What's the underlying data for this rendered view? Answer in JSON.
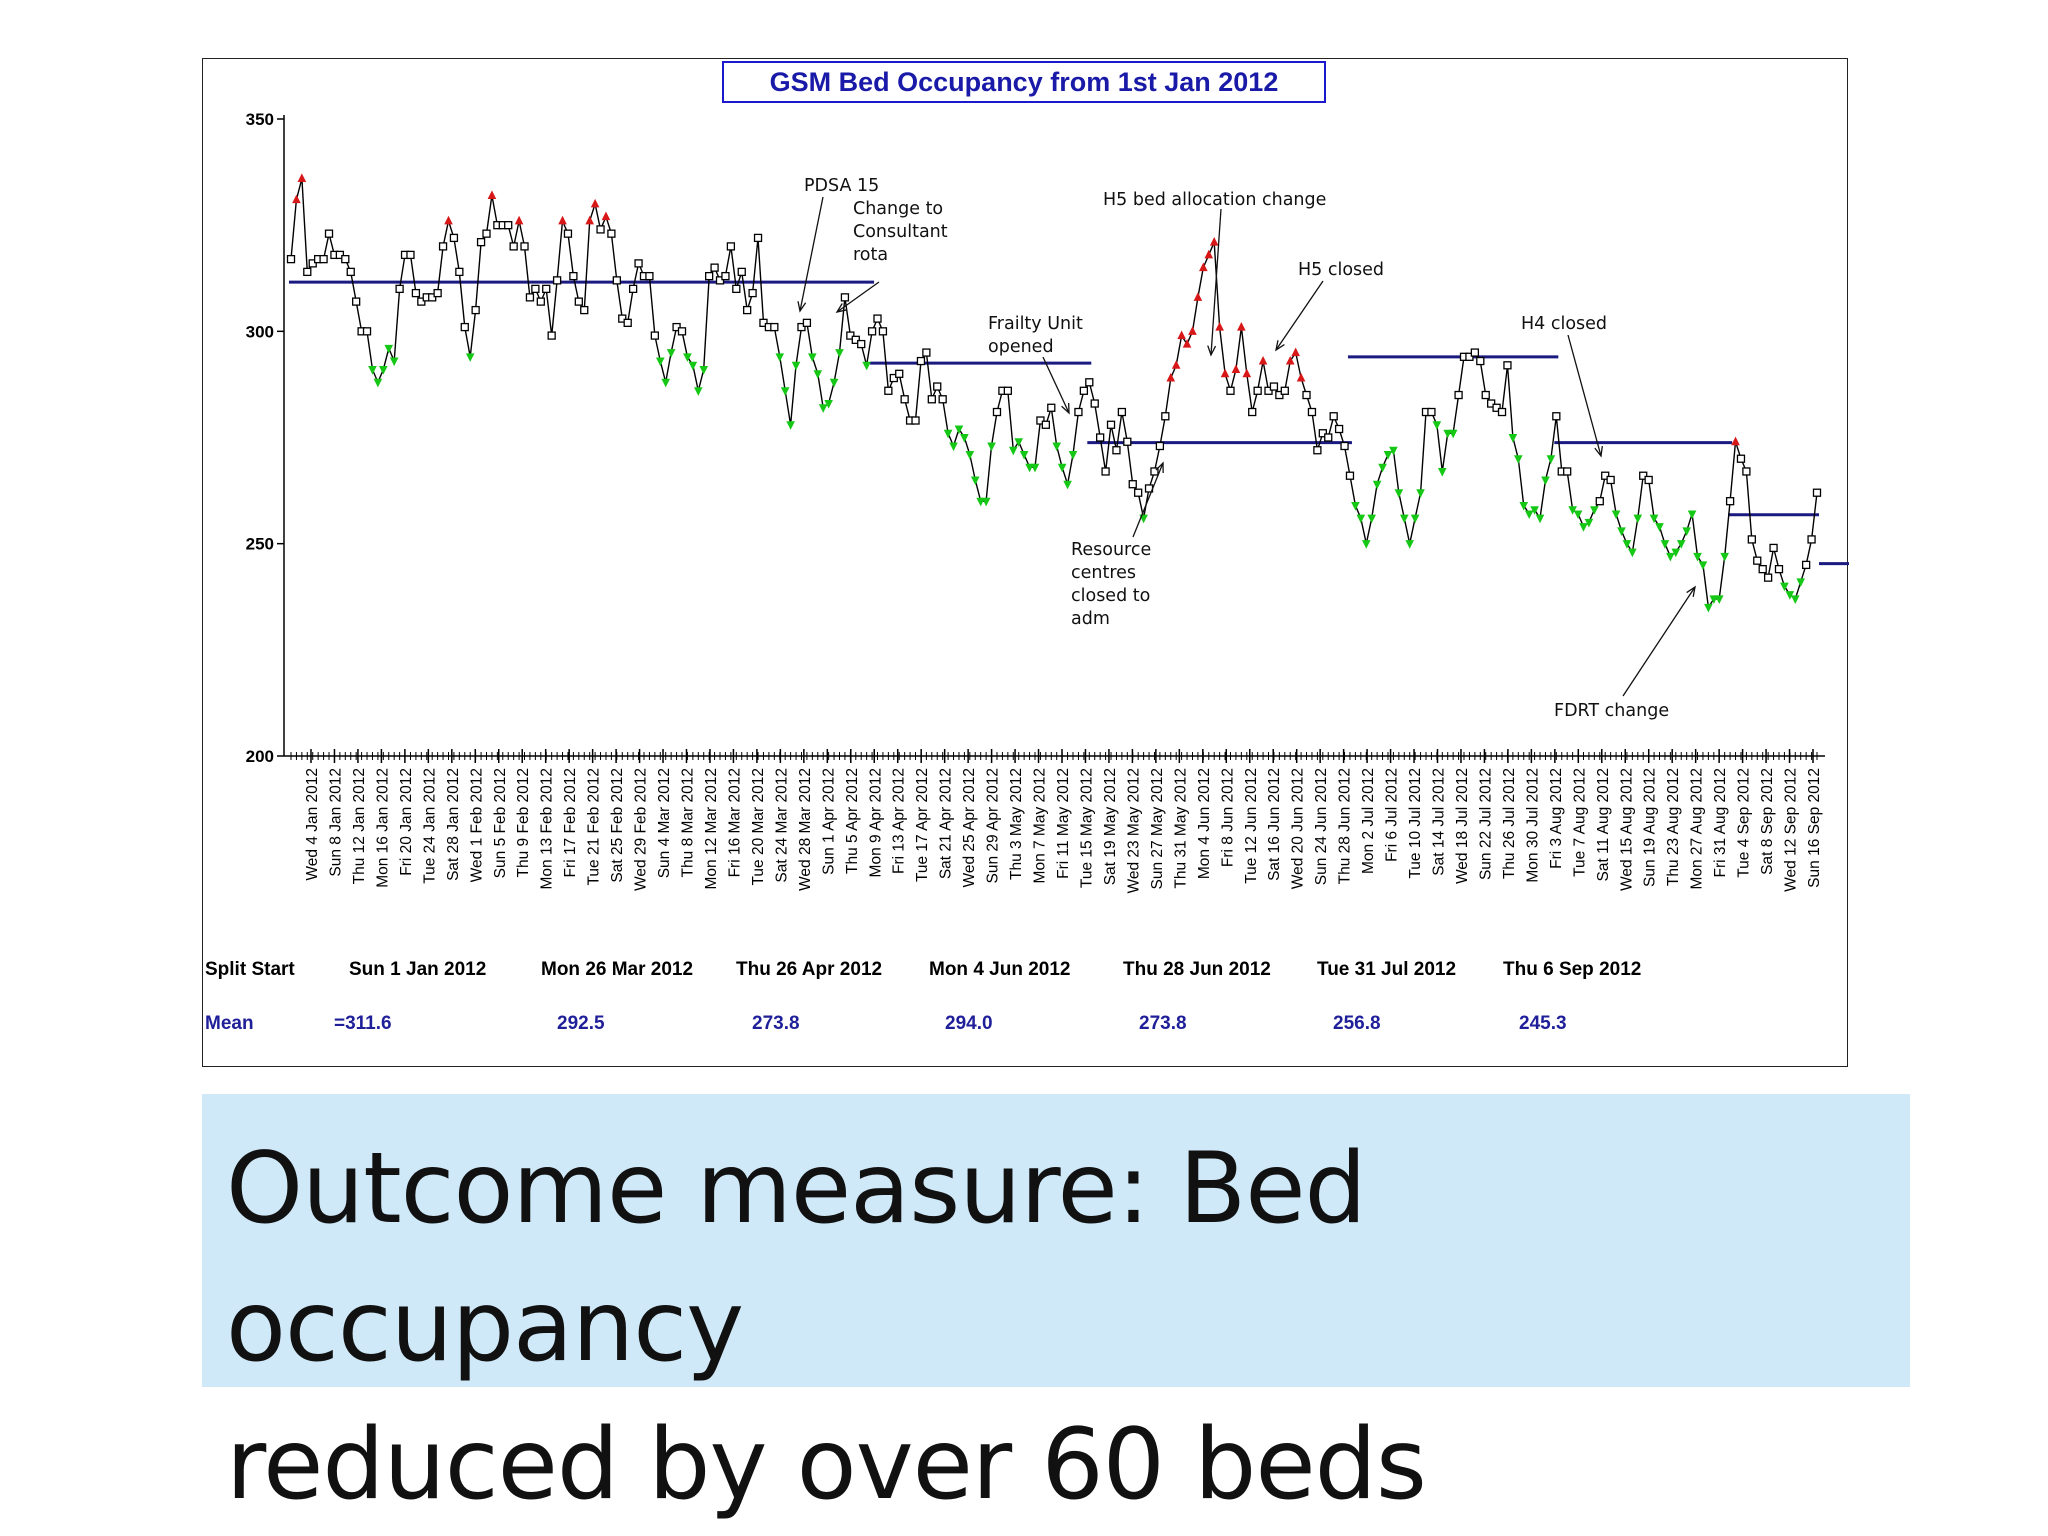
{
  "chart_data": {
    "type": "line",
    "title": "GSM Bed Occupancy from 1st Jan 2012",
    "ylim": [
      200,
      350
    ],
    "yticks": [
      200,
      250,
      300,
      350
    ],
    "grid": false,
    "x_labels": [
      "Wed  4 Jan 2012",
      "Sun  8 Jan 2012",
      "Thu 12 Jan 2012",
      "Mon 16 Jan 2012",
      "Fri 20 Jan 2012",
      "Tue 24 Jan 2012",
      "Sat 28 Jan 2012",
      "Wed  1 Feb 2012",
      "Sun  5 Feb 2012",
      "Thu  9 Feb 2012",
      "Mon 13 Feb 2012",
      "Fri 17 Feb 2012",
      "Tue 21 Feb 2012",
      "Sat 25 Feb 2012",
      "Wed 29 Feb 2012",
      "Sun  4 Mar 2012",
      "Thu  8 Mar 2012",
      "Mon 12 Mar 2012",
      "Fri 16 Mar 2012",
      "Tue 20 Mar 2012",
      "Sat 24 Mar 2012",
      "Wed 28 Mar 2012",
      "Sun  1 Apr 2012",
      "Thu  5 Apr 2012",
      "Mon  9 Apr 2012",
      "Fri 13 Apr 2012",
      "Tue 17 Apr 2012",
      "Sat 21 Apr 2012",
      "Wed 25 Apr 2012",
      "Sun 29 Apr 2012",
      "Thu  3 May 2012",
      "Mon  7 May 2012",
      "Fri 11 May 2012",
      "Tue 15 May 2012",
      "Sat 19 May 2012",
      "Wed 23 May 2012",
      "Sun 27 May 2012",
      "Thu 31 May 2012",
      "Mon  4 Jun 2012",
      "Fri  8 Jun 2012",
      "Tue 12 Jun 2012",
      "Sat 16 Jun 2012",
      "Wed 20 Jun 2012",
      "Sun 24 Jun 2012",
      "Thu 28 Jun 2012",
      "Mon  2 Jul 2012",
      "Fri  6 Jul 2012",
      "Tue 10 Jul 2012",
      "Sat 14 Jul 2012",
      "Wed 18 Jul 2012",
      "Sun 22 Jul 2012",
      "Thu 26 Jul 2012",
      "Mon 30 Jul 2012",
      "Fri  3 Aug 2012",
      "Tue  7 Aug 2012",
      "Sat 11 Aug 2012",
      "Wed 15 Aug 2012",
      "Sun 19 Aug 2012",
      "Thu 23 Aug 2012",
      "Mon 27 Aug 2012",
      "Fri 31 Aug 2012",
      "Tue  4 Sep 2012",
      "Sat  8 Sep 2012",
      "Wed 12 Sep 2012",
      "Sun 16 Sep 2012"
    ],
    "series": [
      {
        "values": [
          317,
          331,
          336,
          314,
          316,
          317,
          317,
          323,
          318,
          318,
          317,
          314,
          307,
          300,
          300,
          291,
          288,
          291,
          296,
          293,
          310,
          318,
          318,
          309,
          307,
          308,
          308,
          309,
          320,
          326,
          322,
          314,
          301,
          294,
          305,
          321,
          323,
          332,
          325,
          325,
          325,
          320,
          326,
          320,
          308,
          310,
          307,
          310,
          299,
          312,
          326,
          323,
          313,
          307,
          305,
          326,
          330,
          324,
          327,
          323,
          312,
          303,
          302,
          310,
          316,
          313,
          313,
          299,
          293,
          288,
          295,
          301,
          300,
          294,
          292,
          286,
          291,
          313,
          315,
          312,
          313,
          320,
          310,
          314,
          305,
          309,
          322,
          302,
          301,
          301,
          294,
          286,
          278,
          292,
          301,
          302,
          294,
          290,
          282,
          283,
          288,
          295,
          308,
          299,
          298,
          297,
          292,
          300,
          303,
          300,
          286,
          289,
          290,
          284,
          279,
          279,
          293,
          295,
          284,
          287,
          284,
          276,
          273,
          277,
          275,
          271,
          265,
          260,
          260,
          273,
          281,
          286,
          286,
          272,
          274,
          271,
          268,
          268,
          279,
          278,
          282,
          273,
          268,
          264,
          271,
          281,
          286,
          288,
          283,
          275,
          267,
          278,
          272,
          281,
          274,
          264,
          262,
          256,
          263,
          267,
          273,
          280,
          289,
          292,
          299,
          297,
          300,
          308,
          315,
          318,
          321,
          301,
          290,
          286,
          291,
          301,
          290,
          281,
          286,
          293,
          286,
          287,
          285,
          286,
          293,
          295,
          289,
          285,
          281,
          272,
          276,
          275,
          280,
          277,
          273,
          266,
          259,
          256,
          250,
          256,
          264,
          268,
          271,
          272,
          262,
          256,
          250,
          256,
          262,
          281,
          281,
          278,
          267,
          276,
          276,
          285,
          294,
          294,
          295,
          293,
          285,
          283,
          282,
          281,
          292,
          275,
          270,
          259,
          257,
          258,
          256,
          265,
          270,
          280,
          267,
          267,
          258,
          257,
          254,
          255,
          258,
          260,
          266,
          265,
          257,
          253,
          250,
          248,
          256,
          266,
          265,
          256,
          254,
          250,
          247,
          248,
          250,
          253,
          257,
          247,
          245,
          235,
          237,
          237,
          247,
          260,
          274,
          270,
          267,
          251,
          246,
          244,
          242,
          249,
          244,
          240,
          238,
          237,
          241,
          245,
          251,
          262
        ]
      }
    ],
    "mean_segments": [
      {
        "from": 0,
        "to": 107,
        "value": 311.6
      },
      {
        "from": 107,
        "to": 147,
        "value": 292.5
      },
      {
        "from": 147,
        "to": 195,
        "value": 273.8
      },
      {
        "from": 195,
        "to": 233,
        "value": 294.0
      },
      {
        "from": 233,
        "to": 265,
        "value": 273.8
      },
      {
        "from": 265,
        "to": 311,
        "value": 256.8
      },
      {
        "from": 311,
        "to": 323,
        "value": 245.3
      }
    ],
    "annotations": [
      {
        "text": "PDSA 15",
        "lines": [
          "PDSA 15"
        ]
      },
      {
        "text": "Change to Consultant rota",
        "lines": [
          "Change to",
          "Consultant",
          "rota"
        ]
      },
      {
        "text": "Frailty Unit opened",
        "lines": [
          "Frailty Unit",
          "opened"
        ]
      },
      {
        "text": "H5 bed allocation change",
        "lines": [
          "H5 bed allocation change"
        ]
      },
      {
        "text": "H5 closed",
        "lines": [
          "H5 closed"
        ]
      },
      {
        "text": "Resource centres closed to adm",
        "lines": [
          "Resource",
          "centres",
          "closed to",
          "adm"
        ]
      },
      {
        "text": "H4 closed",
        "lines": [
          "H4 closed"
        ]
      },
      {
        "text": "FDRT change",
        "lines": [
          "FDRT change"
        ]
      }
    ],
    "split_table": {
      "split_label": "Split Start",
      "mean_label": "Mean",
      "starts": [
        "Sun  1 Jan 2012",
        "Mon 26 Mar 2012",
        "Thu 26 Apr 2012",
        "Mon  4 Jun 2012",
        "Thu 28 Jun 2012",
        "Tue 31 Jul 2012",
        "Thu  6 Sep 2012"
      ],
      "means": [
        "=311.6",
        "292.5",
        "273.8",
        "294.0",
        "273.8",
        "256.8",
        "245.3"
      ]
    },
    "colors": {
      "line": "#000000",
      "mean_line": "#1a1a80",
      "title_border": "#1a1acc",
      "title_text": "#1a1aa8",
      "high_marker": "#d81818",
      "low_marker": "#16c816",
      "mean_text": "#1f1f9a"
    }
  },
  "caption": {
    "line1": "Outcome measure: Bed occupancy",
    "line2": "reduced by over 60 beds"
  }
}
